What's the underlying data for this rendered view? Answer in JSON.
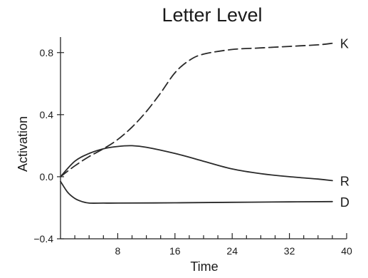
{
  "chart_data": {
    "type": "line",
    "title": "Letter Level",
    "xlabel": "Time",
    "ylabel": "Activation",
    "xlim": [
      0,
      40
    ],
    "ylim": [
      -0.4,
      0.9
    ],
    "x_major_ticks": [
      8,
      16,
      24,
      32,
      40
    ],
    "x_tick_labels": [
      "8",
      "16",
      "24",
      "32",
      "40"
    ],
    "x_minor_ticks": [
      2,
      4,
      6,
      10,
      12,
      14,
      18,
      20,
      22,
      26,
      28,
      30,
      34,
      36,
      38
    ],
    "y_ticks": [
      -0.4,
      0.0,
      0.4,
      0.8
    ],
    "y_tick_labels": [
      "−0.4",
      "0.0",
      "0.4",
      "0.8"
    ],
    "grid": false,
    "legend": "none (series labeled at right end of lines)",
    "series": [
      {
        "name": "K",
        "style": "dashed",
        "x": [
          0,
          2,
          4,
          6,
          8,
          10,
          12,
          14,
          16,
          18,
          20,
          24,
          28,
          32,
          36,
          38
        ],
        "y": [
          0.0,
          0.07,
          0.13,
          0.18,
          0.24,
          0.32,
          0.42,
          0.54,
          0.67,
          0.75,
          0.79,
          0.82,
          0.83,
          0.84,
          0.85,
          0.86
        ]
      },
      {
        "name": "R",
        "style": "solid",
        "x": [
          0,
          2,
          4,
          6,
          8,
          10,
          12,
          16,
          20,
          24,
          28,
          32,
          36,
          38
        ],
        "y": [
          0.0,
          0.1,
          0.15,
          0.18,
          0.195,
          0.2,
          0.19,
          0.15,
          0.1,
          0.05,
          0.02,
          0.0,
          -0.015,
          -0.025
        ]
      },
      {
        "name": "D",
        "style": "solid",
        "x": [
          0,
          1,
          2,
          3,
          4,
          6,
          8,
          16,
          24,
          32,
          38
        ],
        "y": [
          -0.03,
          -0.1,
          -0.14,
          -0.16,
          -0.17,
          -0.17,
          -0.17,
          -0.168,
          -0.165,
          -0.162,
          -0.16
        ]
      }
    ]
  }
}
